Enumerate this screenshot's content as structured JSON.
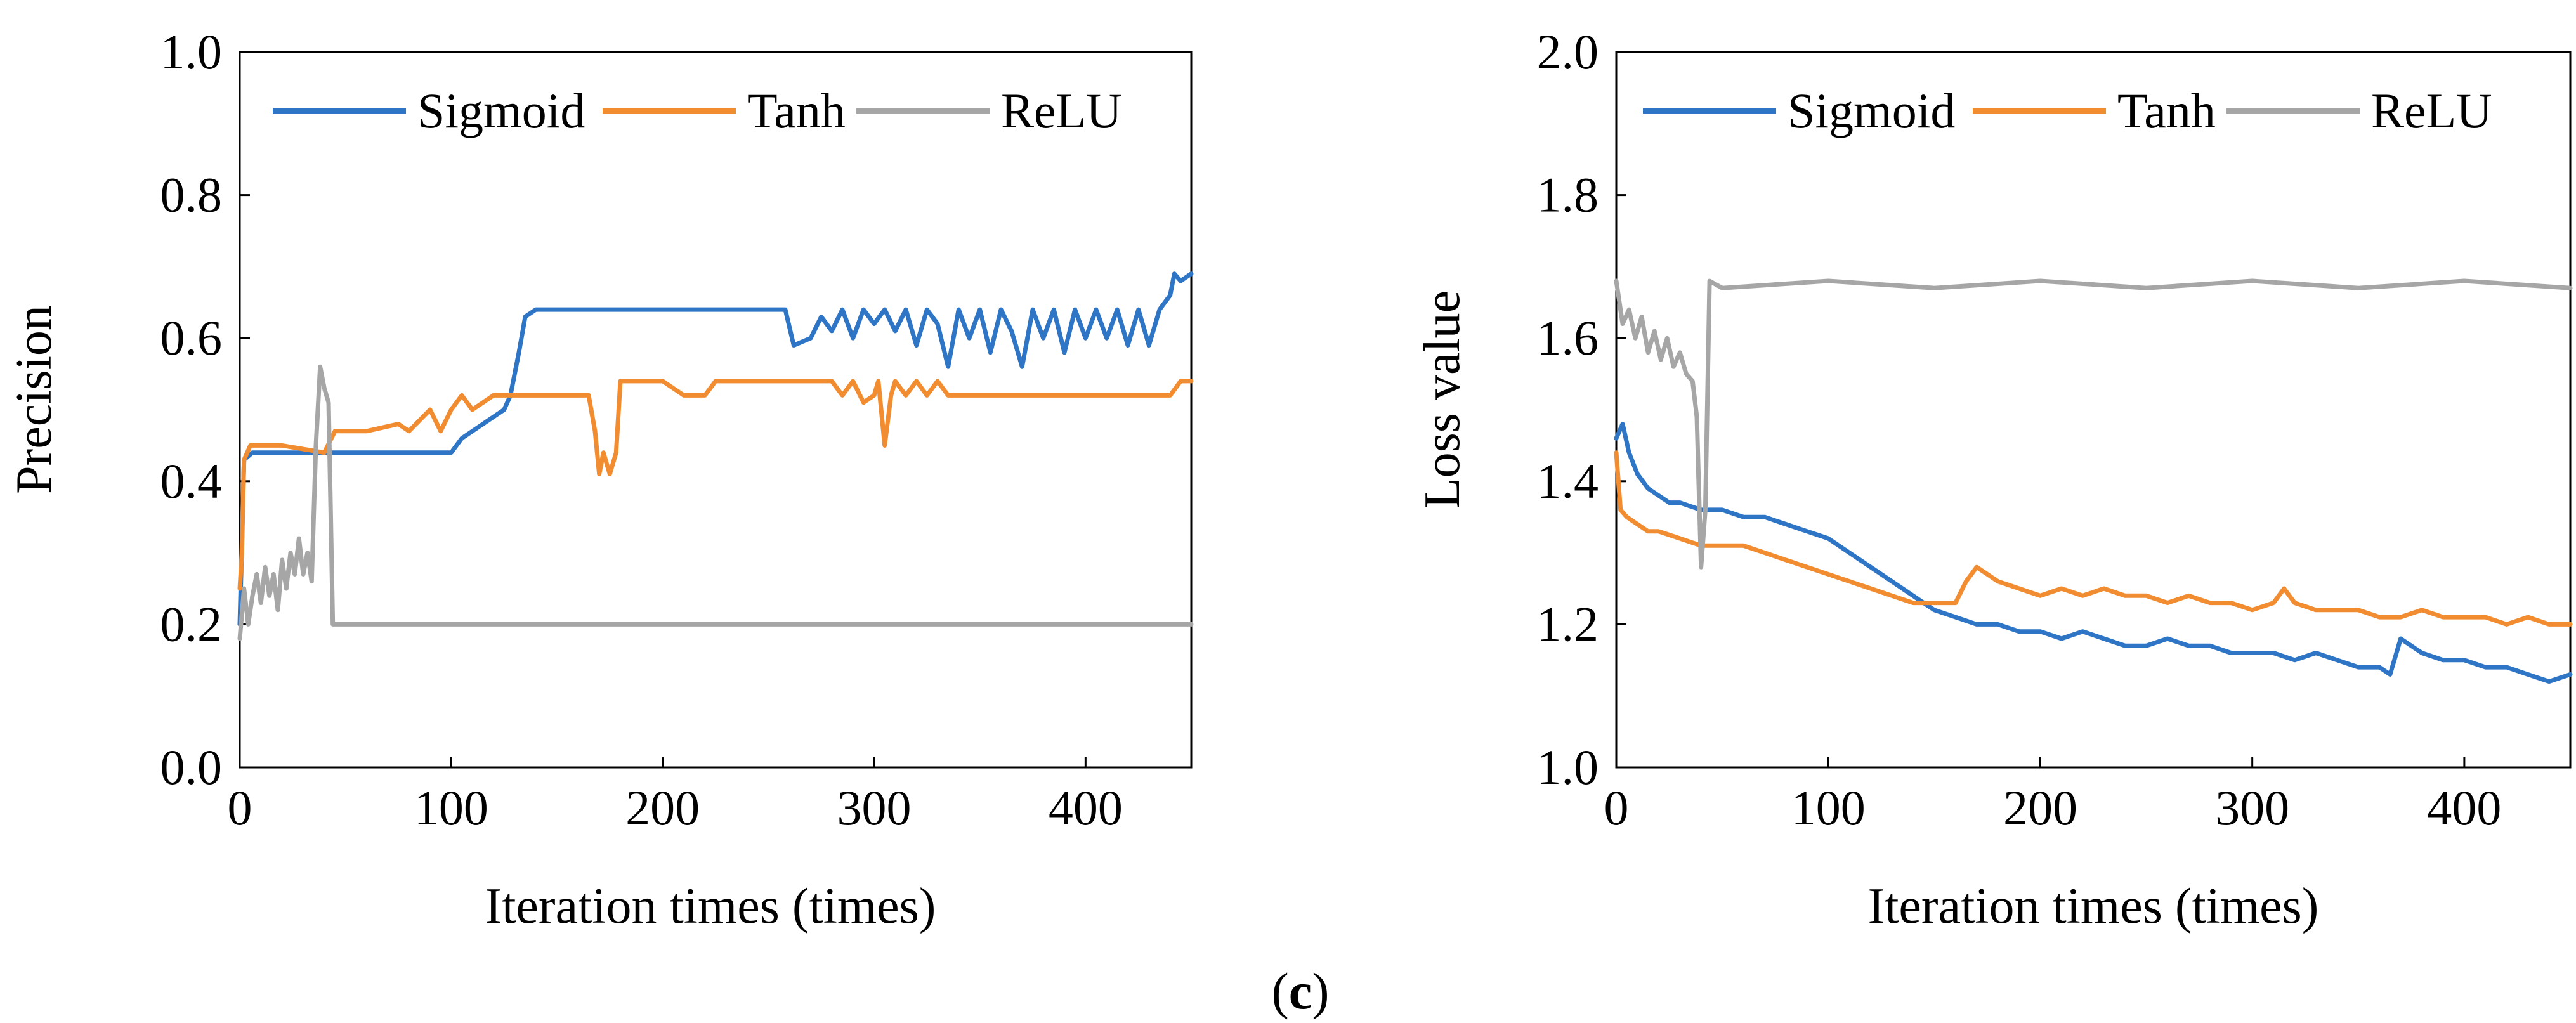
{
  "colors": {
    "Sigmoid": "#2E75C6",
    "Tanh": "#F28C30",
    "ReLU": "#A6A6A6"
  },
  "caption": {
    "open": "(",
    "letter": "c",
    "close": ")"
  },
  "chart_data": [
    {
      "id": "precision",
      "type": "line",
      "title": "",
      "xlabel": "Iteration times (times)",
      "ylabel": "Precision",
      "xlim": [
        0,
        450
      ],
      "ylim": [
        0.0,
        1.0
      ],
      "xticks": [
        0,
        100,
        200,
        300,
        400
      ],
      "yticks": [
        0.0,
        0.2,
        0.4,
        0.6,
        0.8,
        1.0
      ],
      "xtick_labels": [
        "0",
        "100",
        "200",
        "300",
        "400"
      ],
      "ytick_labels": [
        "0.0",
        "0.2",
        "0.4",
        "0.6",
        "0.8",
        "1.0"
      ],
      "grid": false,
      "legend": {
        "placement": "top",
        "entries": [
          "Sigmoid",
          "Tanh",
          "ReLU"
        ]
      },
      "series": [
        {
          "name": "Sigmoid",
          "x": [
            0,
            2,
            6,
            50,
            100,
            105,
            115,
            125,
            128,
            132,
            135,
            140,
            180,
            220,
            258,
            262,
            270,
            275,
            280,
            285,
            290,
            295,
            300,
            305,
            310,
            315,
            320,
            325,
            330,
            335,
            340,
            345,
            350,
            355,
            360,
            365,
            370,
            375,
            380,
            385,
            390,
            395,
            400,
            405,
            410,
            415,
            420,
            425,
            430,
            435,
            440,
            442,
            445,
            450
          ],
          "y": [
            0.2,
            0.43,
            0.44,
            0.44,
            0.44,
            0.46,
            0.48,
            0.5,
            0.52,
            0.58,
            0.63,
            0.64,
            0.64,
            0.64,
            0.64,
            0.59,
            0.6,
            0.63,
            0.61,
            0.64,
            0.6,
            0.64,
            0.62,
            0.64,
            0.61,
            0.64,
            0.59,
            0.64,
            0.62,
            0.56,
            0.64,
            0.6,
            0.64,
            0.58,
            0.64,
            0.61,
            0.56,
            0.64,
            0.6,
            0.64,
            0.58,
            0.64,
            0.6,
            0.64,
            0.6,
            0.64,
            0.59,
            0.64,
            0.59,
            0.64,
            0.66,
            0.69,
            0.68,
            0.69
          ]
        },
        {
          "name": "Tanh",
          "x": [
            0,
            1,
            2,
            5,
            20,
            40,
            45,
            50,
            60,
            75,
            80,
            90,
            95,
            100,
            105,
            110,
            120,
            130,
            165,
            168,
            170,
            172,
            175,
            178,
            180,
            200,
            210,
            220,
            225,
            240,
            250,
            260,
            275,
            280,
            285,
            290,
            295,
            300,
            302,
            305,
            308,
            310,
            315,
            320,
            325,
            330,
            335,
            340,
            350,
            360,
            380,
            400,
            420,
            440,
            445,
            450
          ],
          "y": [
            0.25,
            0.3,
            0.43,
            0.45,
            0.45,
            0.44,
            0.47,
            0.47,
            0.47,
            0.48,
            0.47,
            0.5,
            0.47,
            0.5,
            0.52,
            0.5,
            0.52,
            0.52,
            0.52,
            0.47,
            0.41,
            0.44,
            0.41,
            0.44,
            0.54,
            0.54,
            0.52,
            0.52,
            0.54,
            0.54,
            0.54,
            0.54,
            0.54,
            0.54,
            0.52,
            0.54,
            0.51,
            0.52,
            0.54,
            0.45,
            0.52,
            0.54,
            0.52,
            0.54,
            0.52,
            0.54,
            0.52,
            0.52,
            0.52,
            0.52,
            0.52,
            0.52,
            0.52,
            0.52,
            0.54,
            0.54
          ]
        },
        {
          "name": "ReLU",
          "x": [
            0,
            2,
            4,
            6,
            8,
            10,
            12,
            14,
            16,
            18,
            20,
            22,
            24,
            26,
            28,
            30,
            32,
            34,
            36,
            38,
            40,
            42,
            44,
            46,
            60,
            100,
            200,
            300,
            400,
            450
          ],
          "y": [
            0.18,
            0.25,
            0.2,
            0.24,
            0.27,
            0.23,
            0.28,
            0.24,
            0.27,
            0.22,
            0.29,
            0.25,
            0.3,
            0.27,
            0.32,
            0.27,
            0.3,
            0.26,
            0.45,
            0.56,
            0.53,
            0.51,
            0.2,
            0.2,
            0.2,
            0.2,
            0.2,
            0.2,
            0.2,
            0.2
          ]
        }
      ]
    },
    {
      "id": "loss",
      "type": "line",
      "title": "",
      "xlabel": "Iteration times (times)",
      "ylabel": "Loss value",
      "xlim": [
        0,
        450
      ],
      "ylim": [
        1.0,
        2.0
      ],
      "xticks": [
        0,
        100,
        200,
        300,
        400
      ],
      "yticks": [
        1.0,
        1.2,
        1.4,
        1.6,
        1.8,
        2.0
      ],
      "xtick_labels": [
        "0",
        "100",
        "200",
        "300",
        "400"
      ],
      "ytick_labels": [
        "1.0",
        "1.2",
        "1.4",
        "1.6",
        "1.8",
        "2.0"
      ],
      "grid": false,
      "legend": {
        "placement": "top",
        "entries": [
          "Sigmoid",
          "Tanh",
          "ReLU"
        ]
      },
      "series": [
        {
          "name": "Sigmoid",
          "x": [
            0,
            3,
            6,
            10,
            15,
            20,
            25,
            30,
            40,
            50,
            60,
            70,
            80,
            90,
            100,
            110,
            120,
            130,
            140,
            150,
            160,
            170,
            180,
            190,
            200,
            210,
            220,
            230,
            240,
            250,
            260,
            270,
            280,
            290,
            300,
            310,
            320,
            330,
            340,
            350,
            360,
            365,
            370,
            380,
            390,
            400,
            410,
            420,
            430,
            440,
            450
          ],
          "y": [
            1.46,
            1.48,
            1.44,
            1.41,
            1.39,
            1.38,
            1.37,
            1.37,
            1.36,
            1.36,
            1.35,
            1.35,
            1.34,
            1.33,
            1.32,
            1.3,
            1.28,
            1.26,
            1.24,
            1.22,
            1.21,
            1.2,
            1.2,
            1.19,
            1.19,
            1.18,
            1.19,
            1.18,
            1.17,
            1.17,
            1.18,
            1.17,
            1.17,
            1.16,
            1.16,
            1.16,
            1.15,
            1.16,
            1.15,
            1.14,
            1.14,
            1.13,
            1.18,
            1.16,
            1.15,
            1.15,
            1.14,
            1.14,
            1.13,
            1.12,
            1.13
          ]
        },
        {
          "name": "Tanh",
          "x": [
            0,
            2,
            5,
            10,
            15,
            20,
            30,
            40,
            50,
            60,
            70,
            80,
            90,
            100,
            110,
            120,
            130,
            140,
            150,
            160,
            165,
            170,
            175,
            180,
            190,
            200,
            210,
            220,
            230,
            240,
            250,
            260,
            270,
            280,
            290,
            300,
            310,
            315,
            320,
            330,
            340,
            350,
            360,
            370,
            380,
            390,
            400,
            410,
            420,
            430,
            440,
            450
          ],
          "y": [
            1.44,
            1.36,
            1.35,
            1.34,
            1.33,
            1.33,
            1.32,
            1.31,
            1.31,
            1.31,
            1.3,
            1.29,
            1.28,
            1.27,
            1.26,
            1.25,
            1.24,
            1.23,
            1.23,
            1.23,
            1.26,
            1.28,
            1.27,
            1.26,
            1.25,
            1.24,
            1.25,
            1.24,
            1.25,
            1.24,
            1.24,
            1.23,
            1.24,
            1.23,
            1.23,
            1.22,
            1.23,
            1.25,
            1.23,
            1.22,
            1.22,
            1.22,
            1.21,
            1.21,
            1.22,
            1.21,
            1.21,
            1.21,
            1.2,
            1.21,
            1.2,
            1.2
          ]
        },
        {
          "name": "ReLU",
          "x": [
            0,
            3,
            6,
            9,
            12,
            15,
            18,
            21,
            24,
            27,
            30,
            33,
            36,
            38,
            40,
            42,
            44,
            50,
            100,
            150,
            200,
            250,
            300,
            350,
            400,
            450
          ],
          "y": [
            1.68,
            1.62,
            1.64,
            1.6,
            1.63,
            1.58,
            1.61,
            1.57,
            1.6,
            1.56,
            1.58,
            1.55,
            1.54,
            1.49,
            1.28,
            1.36,
            1.68,
            1.67,
            1.68,
            1.67,
            1.68,
            1.67,
            1.68,
            1.67,
            1.68,
            1.67
          ]
        }
      ]
    }
  ]
}
